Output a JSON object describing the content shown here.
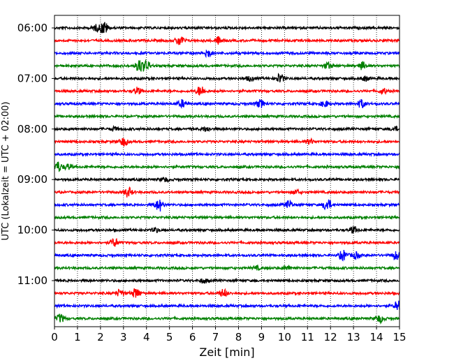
{
  "chart_data": {
    "type": "line",
    "title": "",
    "xlabel": "Zeit  [min]",
    "ylabel": "UTC (Lokalzeit = UTC + 02:00)",
    "xlim": [
      0,
      15
    ],
    "xticks": [
      0,
      1,
      2,
      3,
      4,
      5,
      6,
      7,
      8,
      9,
      10,
      11,
      12,
      13,
      14,
      15
    ],
    "ylim_start": "06:00",
    "ylim_end": "11:45",
    "trace_interval_min": 15,
    "yticks": [
      "06:00",
      "07:00",
      "08:00",
      "09:00",
      "10:00",
      "11:00"
    ],
    "grid": "vertical dotted at each minute",
    "color_cycle": [
      "#000000",
      "#ff0000",
      "#0000ff",
      "#008000"
    ],
    "series": [
      {
        "start": "06:00",
        "bursts": [
          [
            2.15,
            2.8
          ],
          [
            1.8,
            1.2
          ]
        ]
      },
      {
        "start": "06:15",
        "bursts": [
          [
            5.45,
            2.2
          ],
          [
            7.15,
            1.6
          ]
        ]
      },
      {
        "start": "06:30",
        "bursts": [
          [
            6.65,
            1.8
          ]
        ]
      },
      {
        "start": "06:45",
        "bursts": [
          [
            3.7,
            2.6
          ],
          [
            4.0,
            2.0
          ],
          [
            11.9,
            1.4
          ],
          [
            13.4,
            1.6
          ]
        ]
      },
      {
        "start": "07:00",
        "bursts": [
          [
            9.8,
            2.0
          ],
          [
            8.5,
            1.0
          ],
          [
            13.5,
            1.0
          ]
        ]
      },
      {
        "start": "07:15",
        "bursts": [
          [
            6.35,
            2.2
          ],
          [
            3.6,
            1.5
          ],
          [
            14.3,
            1.0
          ]
        ]
      },
      {
        "start": "07:30",
        "bursts": [
          [
            5.55,
            1.5
          ],
          [
            8.95,
            1.6
          ],
          [
            11.75,
            1.3
          ],
          [
            13.35,
            1.7
          ]
        ]
      },
      {
        "start": "07:45",
        "bursts": []
      },
      {
        "start": "08:00",
        "bursts": [
          [
            6.6,
            1.0
          ],
          [
            2.6,
            0.8
          ],
          [
            14.8,
            0.9
          ]
        ]
      },
      {
        "start": "08:15",
        "bursts": [
          [
            3.0,
            1.8
          ],
          [
            11.1,
            1.0
          ]
        ]
      },
      {
        "start": "08:30",
        "bursts": []
      },
      {
        "start": "08:45",
        "bursts": [
          [
            0.15,
            2.2
          ],
          [
            0.6,
            1.2
          ]
        ]
      },
      {
        "start": "09:00",
        "bursts": [
          [
            4.8,
            0.9
          ]
        ]
      },
      {
        "start": "09:15",
        "bursts": [
          [
            3.2,
            2.0
          ],
          [
            10.5,
            0.9
          ]
        ]
      },
      {
        "start": "09:30",
        "bursts": [
          [
            4.55,
            2.6
          ],
          [
            11.85,
            2.6
          ],
          [
            10.2,
            1.5
          ]
        ]
      },
      {
        "start": "09:45",
        "bursts": []
      },
      {
        "start": "10:00",
        "bursts": [
          [
            13.0,
            1.4
          ],
          [
            4.4,
            0.9
          ]
        ]
      },
      {
        "start": "10:15",
        "bursts": [
          [
            2.6,
            1.8
          ]
        ]
      },
      {
        "start": "10:30",
        "bursts": [
          [
            12.55,
            2.2
          ],
          [
            13.1,
            1.3
          ],
          [
            14.85,
            1.8
          ]
        ]
      },
      {
        "start": "10:45",
        "bursts": [
          [
            10.1,
            0.8
          ],
          [
            8.8,
            0.7
          ]
        ]
      },
      {
        "start": "11:00",
        "bursts": [
          [
            6.5,
            1.0
          ]
        ]
      },
      {
        "start": "11:15",
        "bursts": [
          [
            3.55,
            2.2
          ],
          [
            2.85,
            1.5
          ],
          [
            7.35,
            1.6
          ]
        ]
      },
      {
        "start": "11:30",
        "bursts": [
          [
            14.95,
            2.4
          ]
        ]
      },
      {
        "start": "11:45",
        "bursts": [
          [
            0.25,
            1.8
          ],
          [
            14.15,
            1.6
          ]
        ]
      }
    ]
  }
}
